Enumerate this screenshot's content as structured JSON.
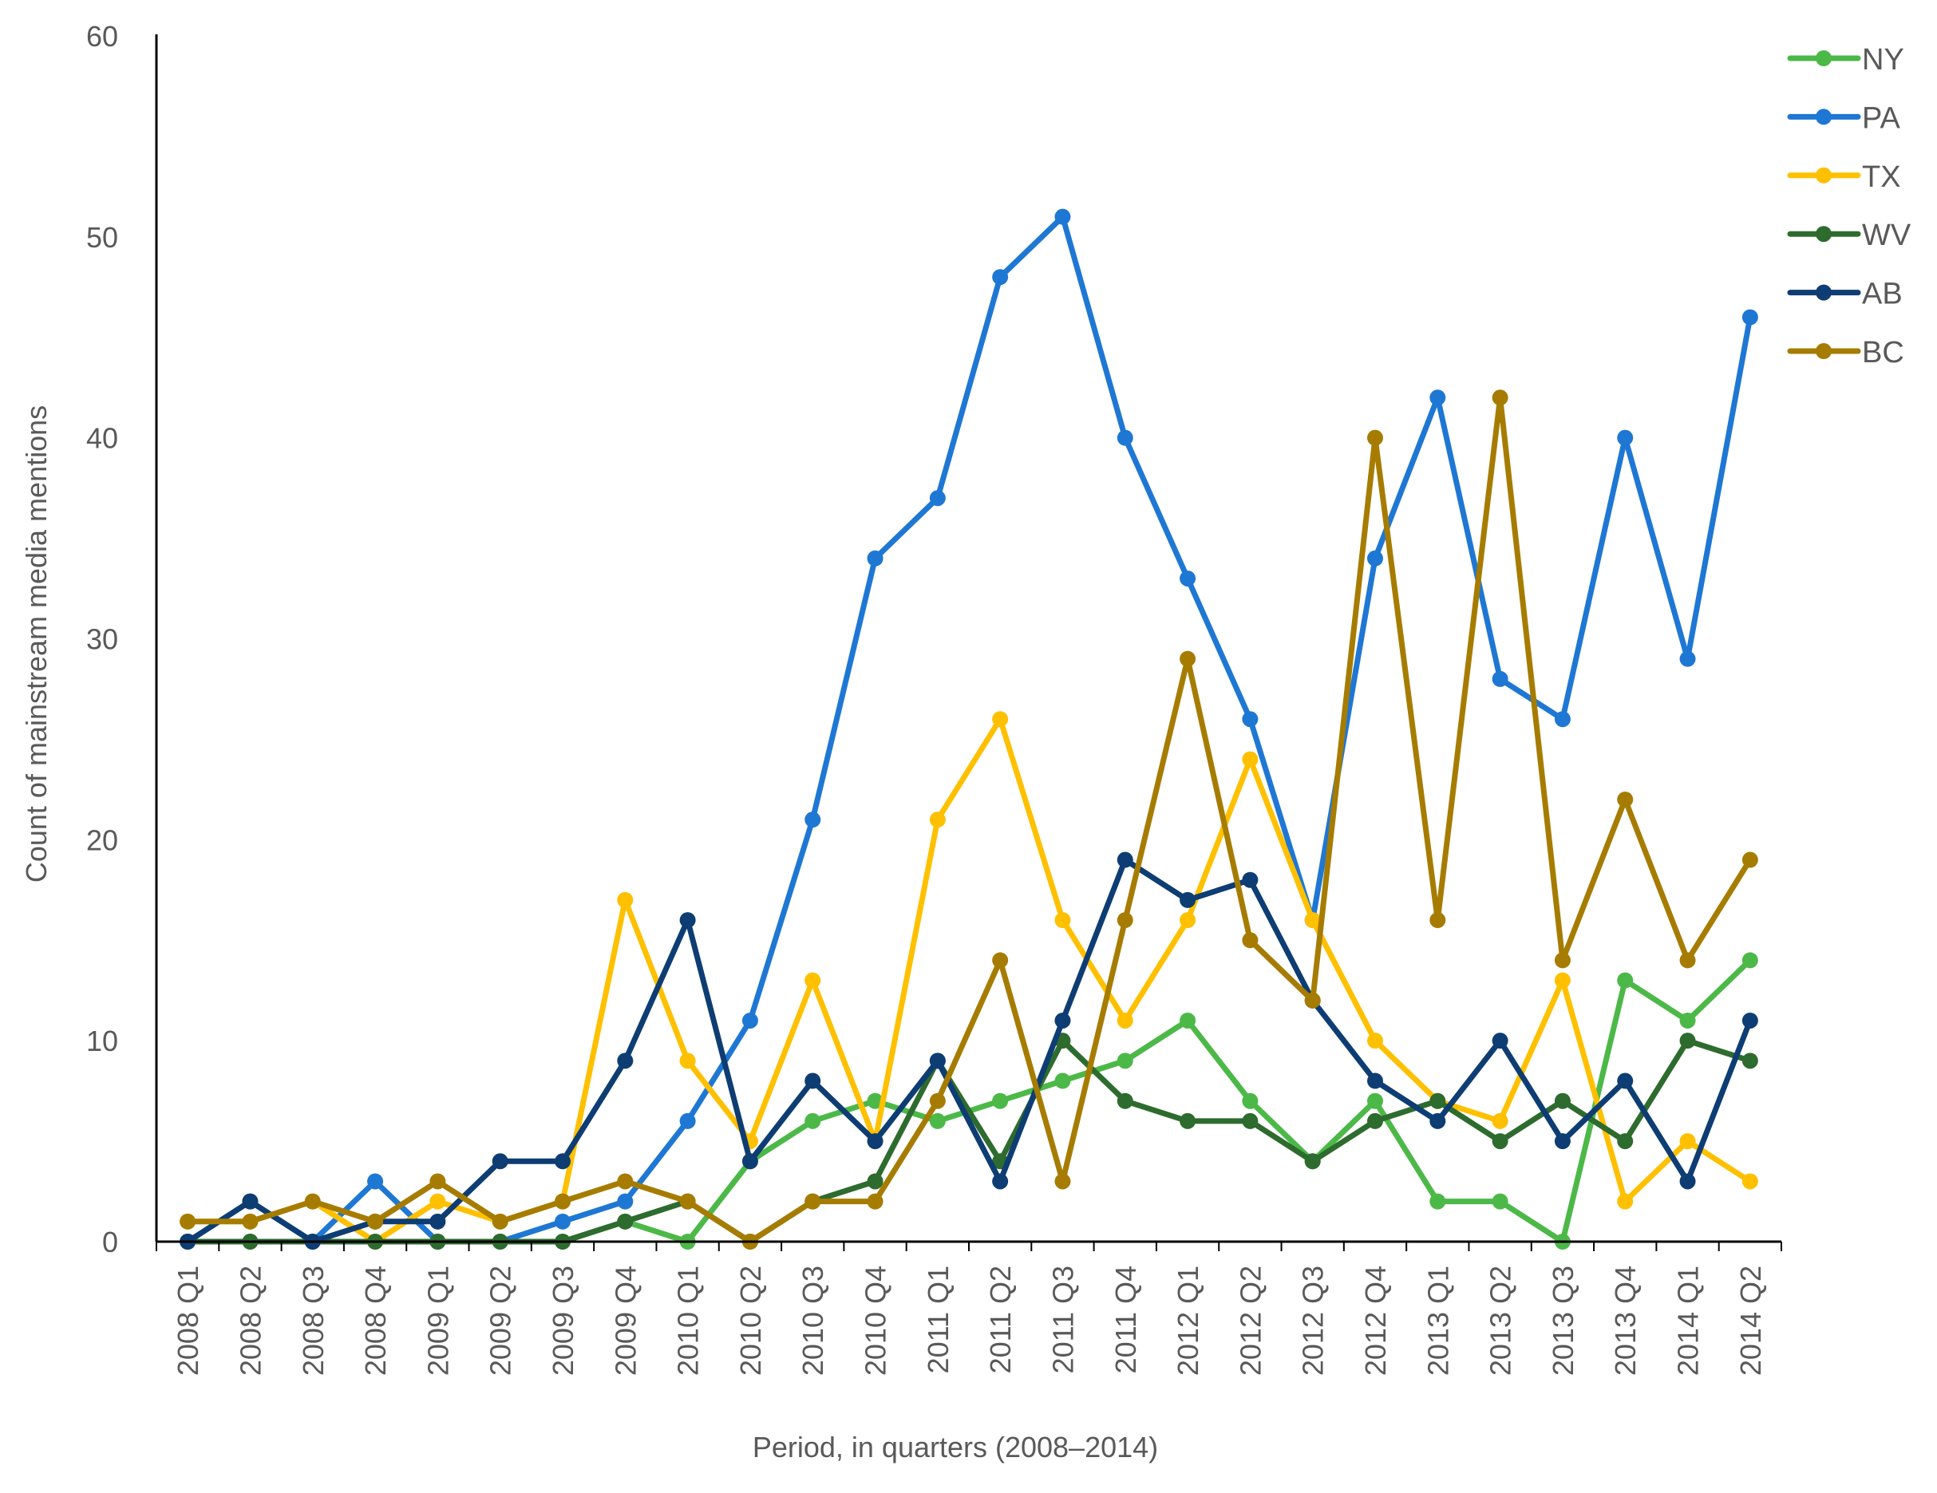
{
  "chart_data": {
    "type": "line",
    "xlabel": "Period, in quarters (2008–2014)",
    "ylabel": "Count of mainstream media mentions",
    "ylim": [
      0,
      60
    ],
    "yticks": [
      0,
      10,
      20,
      30,
      40,
      50,
      60
    ],
    "grid": false,
    "legend_position": "top-right",
    "categories": [
      "2008 Q1",
      "2008 Q2",
      "2008 Q3",
      "2008 Q4",
      "2009 Q1",
      "2009 Q2",
      "2009 Q3",
      "2009 Q4",
      "2010 Q1",
      "2010 Q2",
      "2010 Q3",
      "2010 Q4",
      "2011 Q1",
      "2011 Q2",
      "2011 Q3",
      "2011 Q4",
      "2012 Q1",
      "2012 Q2",
      "2012 Q3",
      "2012 Q4",
      "2013 Q1",
      "2013 Q2",
      "2013 Q3",
      "2013 Q4",
      "2014 Q1",
      "2014 Q2"
    ],
    "series": [
      {
        "name": "NY",
        "color": "#4cb848",
        "values": [
          0,
          0,
          0,
          0,
          0,
          0,
          0,
          1,
          0,
          4,
          6,
          7,
          6,
          7,
          8,
          9,
          11,
          7,
          4,
          7,
          2,
          2,
          0,
          13,
          11,
          14
        ]
      },
      {
        "name": "PA",
        "color": "#1f77d4",
        "values": [
          0,
          2,
          0,
          3,
          0,
          0,
          1,
          2,
          6,
          11,
          21,
          34,
          37,
          48,
          51,
          40,
          33,
          26,
          16,
          34,
          42,
          28,
          26,
          40,
          29,
          46
        ]
      },
      {
        "name": "TX",
        "color": "#ffc000",
        "values": [
          1,
          1,
          2,
          0,
          2,
          1,
          2,
          17,
          9,
          5,
          13,
          5,
          21,
          26,
          16,
          11,
          16,
          24,
          16,
          10,
          7,
          6,
          13,
          2,
          5,
          3
        ]
      },
      {
        "name": "WV",
        "color": "#2e6b2e",
        "values": [
          0,
          0,
          0,
          0,
          0,
          0,
          0,
          1,
          2,
          0,
          2,
          3,
          9,
          4,
          10,
          7,
          6,
          6,
          4,
          6,
          7,
          5,
          7,
          5,
          10,
          9
        ]
      },
      {
        "name": "AB",
        "color": "#0e3d73",
        "values": [
          0,
          2,
          0,
          1,
          1,
          4,
          4,
          9,
          16,
          4,
          8,
          5,
          9,
          3,
          11,
          19,
          17,
          18,
          12,
          8,
          6,
          10,
          5,
          8,
          3,
          11
        ]
      },
      {
        "name": "BC",
        "color": "#a67c00",
        "values": [
          1,
          1,
          2,
          1,
          3,
          1,
          2,
          3,
          2,
          0,
          2,
          2,
          7,
          14,
          3,
          16,
          29,
          15,
          12,
          40,
          16,
          42,
          14,
          22,
          14,
          19
        ]
      }
    ]
  }
}
